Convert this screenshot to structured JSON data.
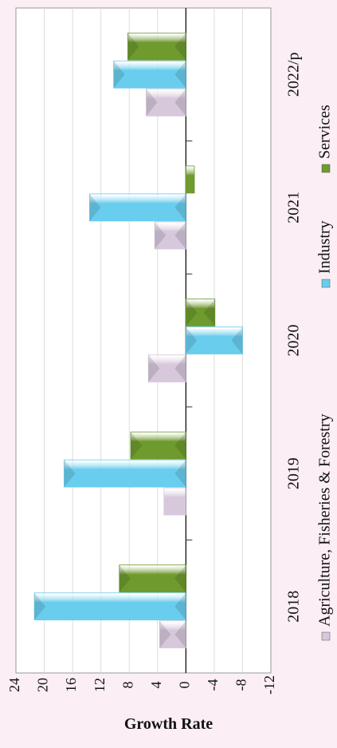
{
  "chart_data": {
    "type": "bar",
    "orientation": "rotated-90-clockwise",
    "title": "",
    "ylabel": "Growth Rate",
    "xlabel": "",
    "categories": [
      "2018",
      "2019",
      "2020",
      "2021",
      "2022/p"
    ],
    "series": [
      {
        "name": "Agriculture, Fisheries & Forestry",
        "color": "#d7c8dc",
        "values": [
          3.7,
          3.1,
          5.3,
          4.4,
          5.6
        ]
      },
      {
        "name": "Industry",
        "color": "#69cdee",
        "values": [
          21.4,
          17.2,
          -8.0,
          13.6,
          10.2
        ]
      },
      {
        "name": "Services",
        "color": "#6e9a2e",
        "values": [
          9.4,
          7.8,
          -4.1,
          -1.2,
          8.2
        ]
      }
    ],
    "ylim": [
      -12,
      24
    ],
    "yticks": [
      "24",
      "20",
      "16",
      "12",
      "8",
      "4",
      "0",
      "-4",
      "-8",
      "-12"
    ],
    "grid": true,
    "legend_position": "bottom"
  }
}
